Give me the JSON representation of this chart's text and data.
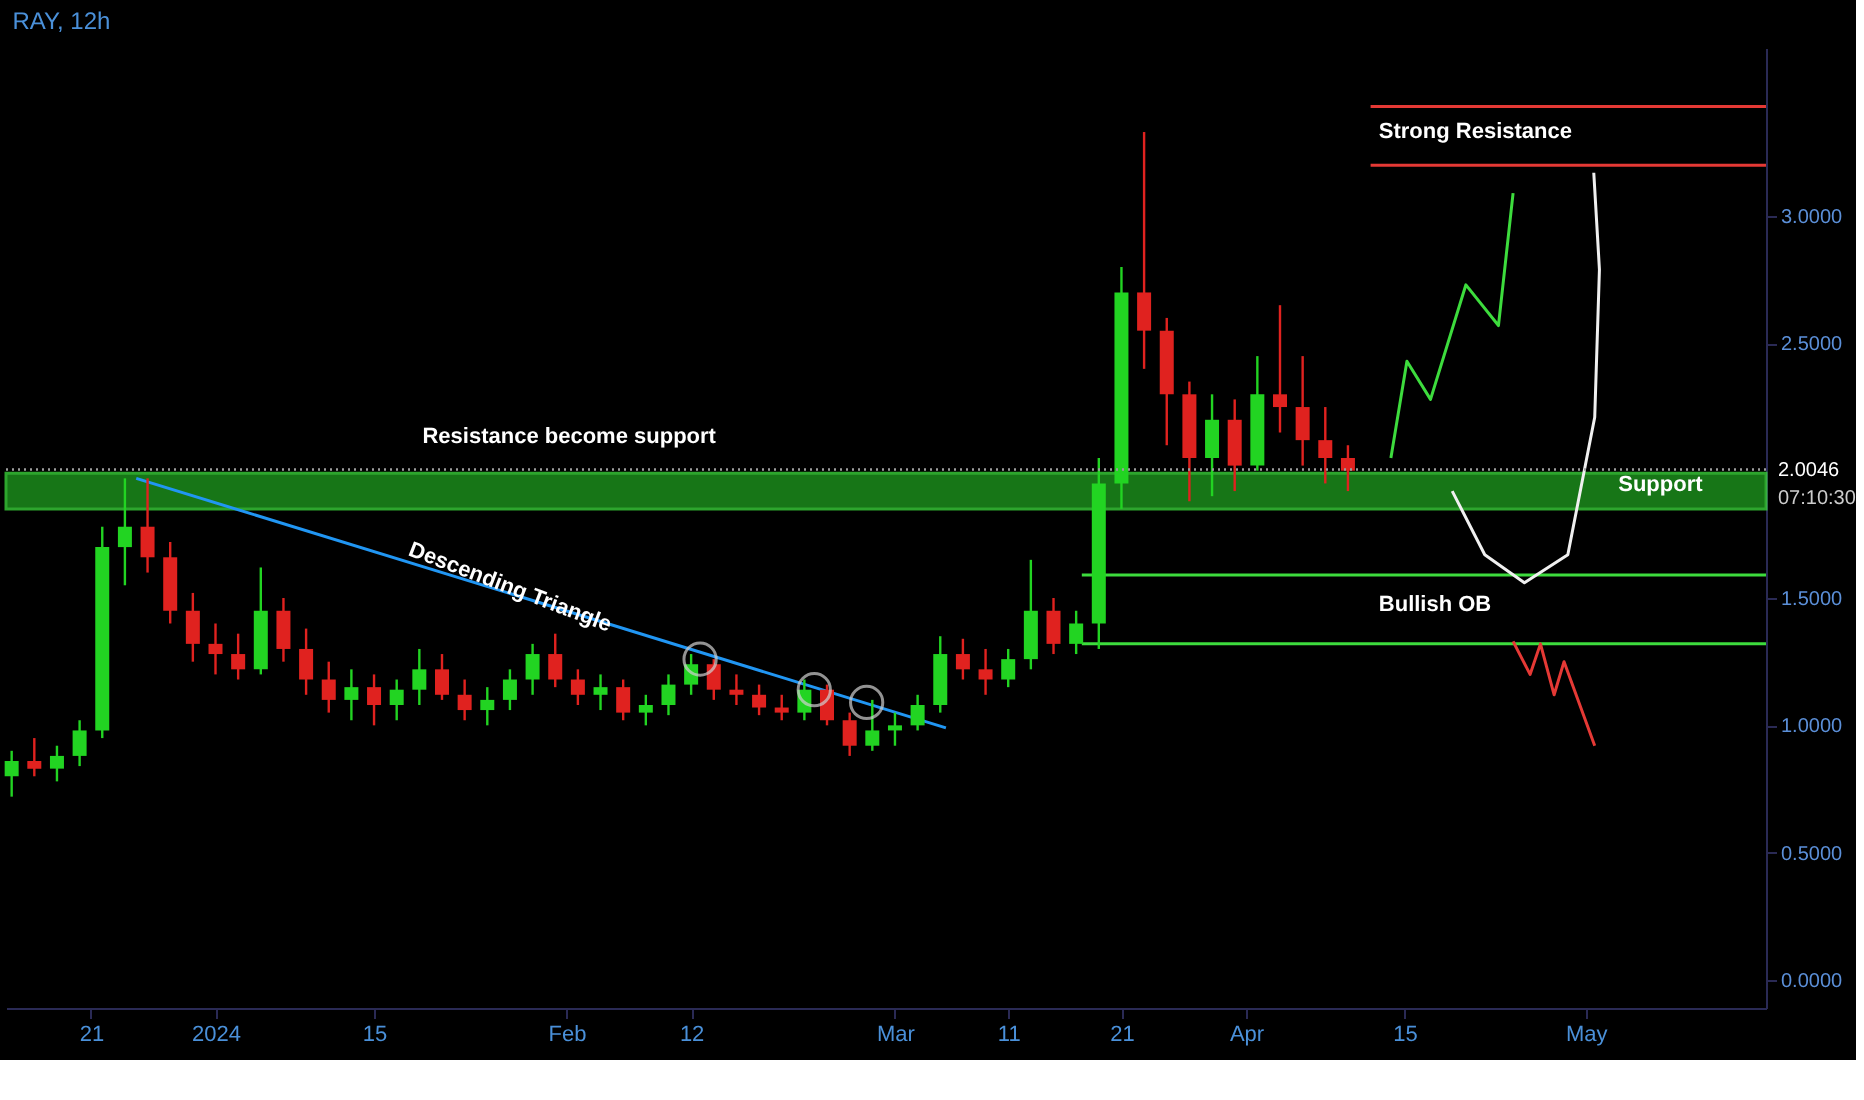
{
  "chart_data": {
    "type": "candlestick",
    "title": "RAY, 12h",
    "x": [
      "2023-12-14",
      "2023-12-16",
      "2023-12-18",
      "2023-12-20",
      "2023-12-22",
      "2023-12-24",
      "2023-12-26",
      "2023-12-28",
      "2023-12-30",
      "2024-01-01",
      "2024-01-03",
      "2024-01-05",
      "2024-01-07",
      "2024-01-09",
      "2024-01-11",
      "2024-01-13",
      "2024-01-15",
      "2024-01-17",
      "2024-01-19",
      "2024-01-21",
      "2024-01-23",
      "2024-01-25",
      "2024-01-27",
      "2024-01-29",
      "2024-01-31",
      "2024-02-02",
      "2024-02-04",
      "2024-02-06",
      "2024-02-08",
      "2024-02-10",
      "2024-02-12",
      "2024-02-14",
      "2024-02-16",
      "2024-02-18",
      "2024-02-20",
      "2024-02-22",
      "2024-02-24",
      "2024-02-26",
      "2024-02-28",
      "2024-03-01",
      "2024-03-03",
      "2024-03-05",
      "2024-03-07",
      "2024-03-09",
      "2024-03-11",
      "2024-03-13",
      "2024-03-15",
      "2024-03-17",
      "2024-03-19",
      "2024-03-21",
      "2024-03-23",
      "2024-03-25",
      "2024-03-27",
      "2024-03-29",
      "2024-03-31",
      "2024-04-02",
      "2024-04-04",
      "2024-04-06",
      "2024-04-08",
      "2024-04-10"
    ],
    "ohlc": [
      [
        0.8,
        0.9,
        0.72,
        0.86
      ],
      [
        0.86,
        0.95,
        0.8,
        0.83
      ],
      [
        0.83,
        0.92,
        0.78,
        0.88
      ],
      [
        0.88,
        1.02,
        0.84,
        0.98
      ],
      [
        0.98,
        1.78,
        0.95,
        1.7
      ],
      [
        1.7,
        1.97,
        1.55,
        1.78
      ],
      [
        1.78,
        1.97,
        1.6,
        1.66
      ],
      [
        1.66,
        1.72,
        1.4,
        1.45
      ],
      [
        1.45,
        1.52,
        1.25,
        1.32
      ],
      [
        1.32,
        1.4,
        1.2,
        1.28
      ],
      [
        1.28,
        1.36,
        1.18,
        1.22
      ],
      [
        1.22,
        1.62,
        1.2,
        1.45
      ],
      [
        1.45,
        1.5,
        1.25,
        1.3
      ],
      [
        1.3,
        1.38,
        1.12,
        1.18
      ],
      [
        1.18,
        1.25,
        1.05,
        1.1
      ],
      [
        1.1,
        1.22,
        1.02,
        1.15
      ],
      [
        1.15,
        1.2,
        1.0,
        1.08
      ],
      [
        1.08,
        1.18,
        1.02,
        1.14
      ],
      [
        1.14,
        1.3,
        1.08,
        1.22
      ],
      [
        1.22,
        1.28,
        1.1,
        1.12
      ],
      [
        1.12,
        1.18,
        1.02,
        1.06
      ],
      [
        1.06,
        1.15,
        1.0,
        1.1
      ],
      [
        1.1,
        1.22,
        1.06,
        1.18
      ],
      [
        1.18,
        1.32,
        1.12,
        1.28
      ],
      [
        1.28,
        1.36,
        1.15,
        1.18
      ],
      [
        1.18,
        1.22,
        1.08,
        1.12
      ],
      [
        1.12,
        1.2,
        1.06,
        1.15
      ],
      [
        1.15,
        1.18,
        1.02,
        1.05
      ],
      [
        1.05,
        1.12,
        1.0,
        1.08
      ],
      [
        1.08,
        1.2,
        1.04,
        1.16
      ],
      [
        1.16,
        1.28,
        1.12,
        1.24
      ],
      [
        1.24,
        1.26,
        1.1,
        1.14
      ],
      [
        1.14,
        1.2,
        1.08,
        1.12
      ],
      [
        1.12,
        1.16,
        1.04,
        1.07
      ],
      [
        1.07,
        1.12,
        1.02,
        1.05
      ],
      [
        1.05,
        1.18,
        1.02,
        1.14
      ],
      [
        1.14,
        1.16,
        1.0,
        1.02
      ],
      [
        1.02,
        1.05,
        0.88,
        0.92
      ],
      [
        0.92,
        1.1,
        0.9,
        0.98
      ],
      [
        0.98,
        1.05,
        0.92,
        1.0
      ],
      [
        1.0,
        1.12,
        0.98,
        1.08
      ],
      [
        1.08,
        1.35,
        1.05,
        1.28
      ],
      [
        1.28,
        1.34,
        1.18,
        1.22
      ],
      [
        1.22,
        1.3,
        1.12,
        1.18
      ],
      [
        1.18,
        1.3,
        1.15,
        1.26
      ],
      [
        1.26,
        1.65,
        1.22,
        1.45
      ],
      [
        1.45,
        1.5,
        1.28,
        1.32
      ],
      [
        1.32,
        1.45,
        1.28,
        1.4
      ],
      [
        1.4,
        2.05,
        1.3,
        1.95
      ],
      [
        1.95,
        2.8,
        1.85,
        2.7
      ],
      [
        2.7,
        3.33,
        2.4,
        2.55
      ],
      [
        2.55,
        2.6,
        2.1,
        2.3
      ],
      [
        2.3,
        2.35,
        1.88,
        2.05
      ],
      [
        2.05,
        2.3,
        1.9,
        2.2
      ],
      [
        2.2,
        2.28,
        1.92,
        2.02
      ],
      [
        2.02,
        2.45,
        2.0,
        2.3
      ],
      [
        2.3,
        2.65,
        2.15,
        2.25
      ],
      [
        2.25,
        2.45,
        2.02,
        2.12
      ],
      [
        2.12,
        2.25,
        1.95,
        2.05
      ],
      [
        2.05,
        2.1,
        1.92,
        2.0
      ]
    ],
    "colors": [
      "#22d422",
      "#e0221f",
      "#22d422",
      "#22d422",
      "#22d422",
      "#22d422",
      "#e0221f",
      "#e0221f",
      "#e0221f",
      "#e0221f",
      "#e0221f",
      "#22d422",
      "#e0221f",
      "#e0221f",
      "#e0221f",
      "#22d422",
      "#e0221f",
      "#22d422",
      "#22d422",
      "#e0221f",
      "#e0221f",
      "#22d422",
      "#22d422",
      "#22d422",
      "#e0221f",
      "#e0221f",
      "#22d422",
      "#e0221f",
      "#22d422",
      "#22d422",
      "#22d422",
      "#e0221f",
      "#e0221f",
      "#e0221f",
      "#e0221f",
      "#22d422",
      "#e0221f",
      "#e0221f",
      "#22d422",
      "#22d422",
      "#22d422",
      "#22d422",
      "#e0221f",
      "#e0221f",
      "#22d422",
      "#22d422",
      "#e0221f",
      "#22d422",
      "#22d422",
      "#22d422",
      "#e0221f",
      "#e0221f",
      "#e0221f",
      "#22d422",
      "#e0221f",
      "#22d422",
      "#e0221f",
      "#e0221f",
      "#e0221f",
      "#e0221f"
    ],
    "series": [
      {
        "type": "line",
        "color": "#2196f3",
        "x": [
          "2023-12-25",
          "2024-03-05T12:00"
        ],
        "values": [
          1.97,
          0.99
        ]
      },
      {
        "type": "scatter",
        "color": "#d0d0d0",
        "marker": "circle",
        "x": [
          "2024-02-12T19:00",
          "2024-02-22T21:00",
          "2024-02-27T12:00"
        ],
        "values": [
          1.26,
          1.14,
          1.09
        ]
      },
      {
        "type": "line",
        "color": "#e53935",
        "x": [
          "2024-04-12",
          "2024-05-16T22:00"
        ],
        "values": [
          3.43,
          3.43
        ]
      },
      {
        "type": "line",
        "color": "#e53935",
        "x": [
          "2024-04-12",
          "2024-05-16T22:00"
        ],
        "values": [
          3.2,
          3.2
        ]
      },
      {
        "type": "line",
        "color": "#3ddc3d",
        "x": [
          "2024-03-17T12:00",
          "2024-05-16T22:00"
        ],
        "values": [
          1.59,
          1.59
        ]
      },
      {
        "type": "line",
        "color": "#3ddc3d",
        "x": [
          "2024-03-17T12:00",
          "2024-05-16T22:00"
        ],
        "values": [
          1.32,
          1.32
        ]
      },
      {
        "type": "line",
        "color": "#3ddc3d",
        "x": [
          "2024-04-13T19:00",
          "2024-04-15T05:00",
          "2024-04-17T07:00",
          "2024-04-20T10:00",
          "2024-04-23T07:00",
          "2024-04-24T14:00"
        ],
        "values": [
          2.05,
          2.43,
          2.28,
          2.73,
          2.57,
          3.09
        ]
      },
      {
        "type": "line",
        "color": "#e53935",
        "x": [
          "2024-04-24T14:00",
          "2024-04-26T02:00",
          "2024-04-27T00:00",
          "2024-04-28T05:00",
          "2024-04-29T02:00",
          "2024-05-01T19:00"
        ],
        "values": [
          1.33,
          1.2,
          1.32,
          1.12,
          1.25,
          0.92
        ]
      },
      {
        "type": "line",
        "color": "#f0f0f0",
        "x": [
          "2024-04-19T05:00",
          "2024-04-22T02:00",
          "2024-04-25T14:00",
          "2024-04-29T10:00",
          "2024-05-01T19:00",
          "2024-05-02T05:00",
          "2024-05-01T17:00"
        ],
        "values": [
          1.92,
          1.67,
          1.56,
          1.67,
          2.21,
          2.79,
          3.17
        ]
      }
    ],
    "bands": [
      {
        "axis": "y",
        "from": 1.85,
        "to": 1.99,
        "color": "#1f9e1f"
      }
    ],
    "ref_lines": [
      {
        "axis": "y",
        "value": 2.0046,
        "label": "2.0046",
        "color": "#9e9e9e",
        "line_style": "dotted"
      }
    ],
    "annotations": [
      "Resistance become support",
      {
        "text": "Descending Triangle",
        "x": "2024-01-27",
        "y": 1.54
      },
      "Strong Resistance",
      "Support",
      "Bullish OB",
      "07:10:30"
    ],
    "xlim": [
      "2023-12-13T12:00",
      "2024-05-16T22:00"
    ],
    "xticks": [
      {
        "value": "2023-12-21",
        "label": "21"
      },
      {
        "value": "2024-01-01",
        "label": "2024"
      },
      {
        "value": "2024-01-15",
        "label": "15"
      },
      {
        "value": "2024-02-01",
        "label": "Feb"
      },
      {
        "value": "2024-02-12",
        "label": "12"
      },
      {
        "value": "2024-03-01",
        "label": "Mar"
      },
      {
        "value": "2024-03-11",
        "label": "11"
      },
      {
        "value": "2024-03-21",
        "label": "21"
      },
      {
        "value": "2024-04-01",
        "label": "Apr"
      },
      {
        "value": "2024-04-15",
        "label": "15"
      },
      {
        "value": "2024-05-01",
        "label": "May"
      }
    ],
    "ylim": [
      -0.11,
      3.66
    ],
    "yticks": [
      {
        "value": 0,
        "label": "0.0000"
      },
      {
        "value": 0.5,
        "label": "0.5000"
      },
      {
        "value": 1,
        "label": "1.0000"
      },
      {
        "value": 1.5,
        "label": "1.5000"
      },
      {
        "value": 2.5,
        "label": "2.5000"
      },
      {
        "value": 3,
        "label": "3.0000"
      }
    ],
    "grid": false
  }
}
